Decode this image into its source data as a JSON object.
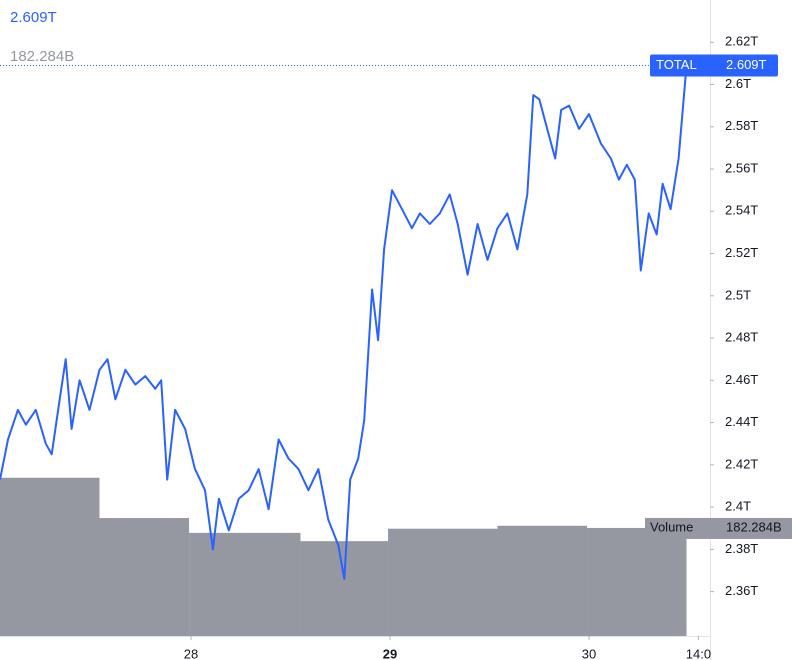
{
  "chart_data": {
    "type": "line",
    "series": [
      {
        "name": "TOTAL",
        "color": "#2962ff",
        "last_label": "2.609T",
        "x": [
          27.04,
          27.08,
          27.13,
          27.17,
          27.22,
          27.27,
          27.3,
          27.34,
          27.37,
          27.4,
          27.44,
          27.49,
          27.54,
          27.58,
          27.62,
          27.67,
          27.72,
          27.77,
          27.82,
          27.85,
          27.88,
          27.92,
          27.97,
          28.02,
          28.07,
          28.11,
          28.14,
          28.19,
          28.24,
          28.29,
          28.34,
          28.39,
          28.44,
          28.49,
          28.54,
          28.59,
          28.64,
          28.69,
          28.74,
          28.77,
          28.8,
          28.84,
          28.87,
          28.91,
          28.94,
          28.97,
          29.01,
          29.06,
          29.11,
          29.15,
          29.2,
          29.25,
          29.3,
          29.34,
          29.39,
          29.44,
          29.49,
          29.54,
          29.59,
          29.64,
          29.69,
          29.72,
          29.75,
          29.79,
          29.83,
          29.86,
          29.9,
          29.95,
          30.0,
          30.06,
          30.11,
          30.15,
          30.19,
          30.23,
          30.26,
          30.3,
          30.34,
          30.37,
          30.41,
          30.45,
          30.49
        ],
        "values": [
          2.413,
          2.432,
          2.446,
          2.439,
          2.446,
          2.43,
          2.425,
          2.451,
          2.47,
          2.437,
          2.46,
          2.446,
          2.465,
          2.47,
          2.451,
          2.465,
          2.458,
          2.462,
          2.456,
          2.46,
          2.413,
          2.446,
          2.437,
          2.418,
          2.408,
          2.38,
          2.404,
          2.389,
          2.404,
          2.408,
          2.418,
          2.399,
          2.432,
          2.423,
          2.418,
          2.408,
          2.418,
          2.394,
          2.382,
          2.366,
          2.413,
          2.423,
          2.441,
          2.503,
          2.479,
          2.522,
          2.55,
          2.541,
          2.532,
          2.539,
          2.534,
          2.539,
          2.548,
          2.534,
          2.51,
          2.534,
          2.517,
          2.532,
          2.539,
          2.522,
          2.548,
          2.595,
          2.593,
          2.579,
          2.565,
          2.588,
          2.59,
          2.579,
          2.586,
          2.572,
          2.565,
          2.555,
          2.562,
          2.555,
          2.512,
          2.539,
          2.529,
          2.553,
          2.541,
          2.565,
          2.609
        ]
      }
    ],
    "volume": {
      "name": "Volume",
      "color": "#9598a1",
      "last_label": "182.284B",
      "bins": [
        27.04,
        27.54,
        27.99,
        28.55,
        28.99,
        29.54,
        29.99,
        30.49
      ],
      "values": [
        267,
        199,
        174,
        160,
        181,
        186,
        182.284
      ]
    },
    "xlim": [
      27.04,
      30.608
    ],
    "xticks": [
      28,
      29,
      30,
      {
        "value": 30.55,
        "label": "14:0"
      }
    ],
    "ylim": [
      2.339,
      2.64
    ],
    "yticks": [
      {
        "value": 2.36,
        "label": "2.36T"
      },
      {
        "value": 2.38,
        "label": "2.38T"
      },
      {
        "value": 2.4,
        "label": "2.4T"
      },
      {
        "value": 2.42,
        "label": "2.42T"
      },
      {
        "value": 2.44,
        "label": "2.44T"
      },
      {
        "value": 2.46,
        "label": "2.46T"
      },
      {
        "value": 2.48,
        "label": "2.48T"
      },
      {
        "value": 2.5,
        "label": "2.5T"
      },
      {
        "value": 2.52,
        "label": "2.52T"
      },
      {
        "value": 2.54,
        "label": "2.54T"
      },
      {
        "value": 2.56,
        "label": "2.56T"
      },
      {
        "value": 2.58,
        "label": "2.58T"
      },
      {
        "value": 2.6,
        "label": "2.6T"
      },
      {
        "value": 2.62,
        "label": "2.62T"
      }
    ],
    "y2lim": [
      0,
      1073
    ],
    "grid": false
  }
}
